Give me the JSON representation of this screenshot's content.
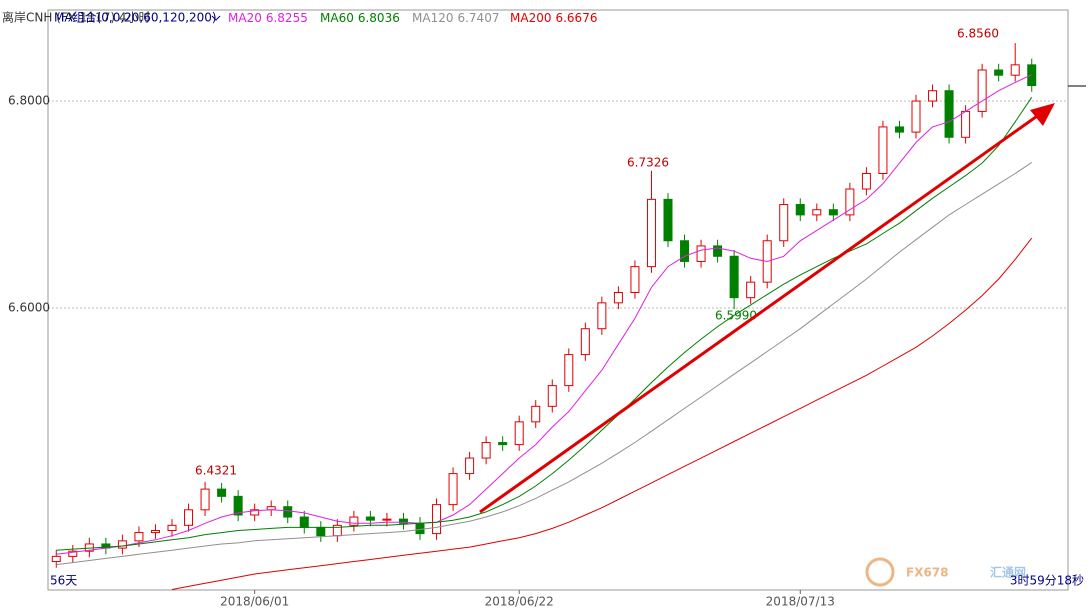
{
  "header": {
    "instrument": "离岸CNH (FX 1117)  4小时",
    "ma_group": "MA组合(0,0,20,60,120,200)"
  },
  "footer": {
    "left": "56天",
    "right": "3时59分18秒"
  },
  "watermark": {
    "brand": "FX678",
    "site": "汇通网"
  },
  "chart_data": {
    "type": "candlestick",
    "categories": [
      null,
      null,
      null,
      null,
      null,
      null,
      null,
      null,
      null,
      null,
      null,
      null,
      "2018/06/01",
      null,
      null,
      null,
      null,
      null,
      null,
      null,
      null,
      null,
      null,
      null,
      null,
      null,
      null,
      null,
      "2018/06/22",
      null,
      null,
      null,
      null,
      null,
      null,
      null,
      null,
      null,
      null,
      null,
      null,
      null,
      null,
      null,
      null,
      "2018/07/13",
      null,
      null,
      null,
      null,
      null,
      null,
      null,
      null,
      null,
      null,
      null,
      null,
      null,
      null
    ],
    "open": [
      6.355,
      6.36,
      6.365,
      6.372,
      6.368,
      6.375,
      6.383,
      6.385,
      6.39,
      6.405,
      6.425,
      6.418,
      6.4,
      6.405,
      6.408,
      6.398,
      6.388,
      6.38,
      6.39,
      6.398,
      6.395,
      6.396,
      6.392,
      6.382,
      6.41,
      6.44,
      6.455,
      6.47,
      6.468,
      6.49,
      6.505,
      6.525,
      6.555,
      6.58,
      6.605,
      6.615,
      6.64,
      6.705,
      6.665,
      6.645,
      6.66,
      6.65,
      6.61,
      6.625,
      6.665,
      6.7,
      6.69,
      6.695,
      6.69,
      6.715,
      6.73,
      6.775,
      6.77,
      6.8,
      6.81,
      6.765,
      6.79,
      6.83,
      6.825,
      6.835
    ],
    "high": [
      6.366,
      6.371,
      6.378,
      6.378,
      6.381,
      6.389,
      6.391,
      6.396,
      6.411,
      6.4321,
      6.431,
      6.424,
      6.411,
      6.414,
      6.414,
      6.404,
      6.394,
      6.396,
      6.404,
      6.404,
      6.402,
      6.402,
      6.398,
      6.416,
      6.446,
      6.461,
      6.476,
      6.476,
      6.496,
      6.511,
      6.531,
      6.561,
      6.586,
      6.611,
      6.621,
      6.646,
      6.7326,
      6.711,
      6.671,
      6.666,
      6.666,
      6.656,
      6.631,
      6.671,
      6.706,
      6.706,
      6.701,
      6.701,
      6.721,
      6.736,
      6.781,
      6.781,
      6.806,
      6.816,
      6.816,
      6.796,
      6.836,
      6.836,
      6.856,
      6.841
    ],
    "low": [
      6.349,
      6.354,
      6.359,
      6.362,
      6.362,
      6.369,
      6.377,
      6.379,
      6.384,
      6.399,
      6.412,
      6.394,
      6.394,
      6.399,
      6.392,
      6.382,
      6.374,
      6.374,
      6.384,
      6.389,
      6.389,
      6.386,
      6.376,
      6.376,
      6.404,
      6.434,
      6.449,
      6.462,
      6.462,
      6.484,
      6.499,
      6.519,
      6.549,
      6.574,
      6.599,
      6.609,
      6.634,
      6.659,
      6.639,
      6.639,
      6.644,
      6.599,
      6.604,
      6.619,
      6.659,
      6.684,
      6.684,
      6.684,
      6.684,
      6.709,
      6.724,
      6.764,
      6.764,
      6.794,
      6.759,
      6.759,
      6.784,
      6.819,
      6.819,
      6.809
    ],
    "close": [
      6.36,
      6.365,
      6.372,
      6.368,
      6.375,
      6.383,
      6.385,
      6.39,
      6.405,
      6.425,
      6.418,
      6.4,
      6.405,
      6.408,
      6.398,
      6.388,
      6.38,
      6.39,
      6.398,
      6.395,
      6.396,
      6.392,
      6.382,
      6.41,
      6.44,
      6.455,
      6.47,
      6.468,
      6.49,
      6.505,
      6.525,
      6.555,
      6.58,
      6.605,
      6.615,
      6.64,
      6.705,
      6.665,
      6.645,
      6.66,
      6.65,
      6.61,
      6.625,
      6.665,
      6.7,
      6.69,
      6.695,
      6.69,
      6.715,
      6.73,
      6.775,
      6.77,
      6.8,
      6.81,
      6.765,
      6.79,
      6.83,
      6.825,
      6.835,
      6.815
    ],
    "up_color": "#e00000",
    "down_color": "#008000",
    "series": [
      {
        "name": "MA20",
        "color": "#e020e0",
        "values": [
          6.362,
          6.364,
          6.366,
          6.368,
          6.37,
          6.373,
          6.376,
          6.38,
          6.385,
          6.392,
          6.398,
          6.402,
          6.404,
          6.405,
          6.404,
          6.402,
          6.398,
          6.394,
          6.392,
          6.392,
          6.393,
          6.393,
          6.392,
          6.393,
          6.4,
          6.41,
          6.425,
          6.44,
          6.455,
          6.468,
          6.485,
          6.5,
          6.52,
          6.54,
          6.565,
          6.59,
          6.62,
          6.64,
          6.65,
          6.656,
          6.658,
          6.655,
          6.648,
          6.645,
          6.65,
          6.665,
          6.675,
          6.685,
          6.695,
          6.705,
          6.72,
          6.74,
          6.76,
          6.775,
          6.78,
          6.79,
          6.8,
          6.81,
          6.818,
          6.8255
        ]
      },
      {
        "name": "MA60",
        "color": "#008000",
        "values": [
          6.366,
          6.367,
          6.368,
          6.369,
          6.37,
          6.372,
          6.374,
          6.376,
          6.378,
          6.381,
          6.383,
          6.385,
          6.386,
          6.387,
          6.388,
          6.388,
          6.388,
          6.388,
          6.389,
          6.39,
          6.39,
          6.391,
          6.392,
          6.393,
          6.395,
          6.398,
          6.403,
          6.41,
          6.418,
          6.428,
          6.44,
          6.453,
          6.467,
          6.482,
          6.497,
          6.512,
          6.528,
          6.543,
          6.557,
          6.57,
          6.582,
          6.593,
          6.603,
          6.613,
          6.623,
          6.632,
          6.64,
          6.648,
          6.655,
          6.662,
          6.672,
          6.682,
          6.694,
          6.706,
          6.717,
          6.728,
          6.74,
          6.757,
          6.78,
          6.8036
        ]
      },
      {
        "name": "MA120",
        "color": "#909090",
        "values": [
          6.352,
          6.354,
          6.356,
          6.358,
          6.36,
          6.362,
          6.364,
          6.366,
          6.368,
          6.37,
          6.372,
          6.373,
          6.375,
          6.376,
          6.377,
          6.378,
          6.379,
          6.38,
          6.381,
          6.382,
          6.383,
          6.384,
          6.386,
          6.388,
          6.391,
          6.394,
          6.398,
          6.403,
          6.409,
          6.416,
          6.424,
          6.432,
          6.441,
          6.45,
          6.46,
          6.47,
          6.481,
          6.492,
          6.503,
          6.514,
          6.525,
          6.536,
          6.547,
          6.558,
          6.569,
          6.58,
          6.592,
          6.604,
          6.616,
          6.628,
          6.641,
          6.654,
          6.666,
          6.678,
          6.69,
          6.7,
          6.71,
          6.72,
          6.73,
          6.7407
        ]
      },
      {
        "name": "MA200",
        "color": "#e00000",
        "values": [
          null,
          null,
          null,
          null,
          null,
          null,
          null,
          6.328,
          6.331,
          6.334,
          6.337,
          6.34,
          6.343,
          6.345,
          6.347,
          6.349,
          6.351,
          6.353,
          6.355,
          6.357,
          6.359,
          6.361,
          6.363,
          6.365,
          6.367,
          6.369,
          6.372,
          6.375,
          6.378,
          6.382,
          6.387,
          6.393,
          6.4,
          6.407,
          6.415,
          6.423,
          6.431,
          6.439,
          6.447,
          6.455,
          6.463,
          6.471,
          6.479,
          6.487,
          6.495,
          6.503,
          6.511,
          6.519,
          6.527,
          6.535,
          6.544,
          6.553,
          6.562,
          6.573,
          6.585,
          6.598,
          6.612,
          6.628,
          6.647,
          6.6676
        ]
      }
    ],
    "annotations": [
      "6.4321",
      "6.7326",
      "6.5990",
      "6.8560"
    ],
    "ylim": [
      6.3275,
      6.888
    ],
    "yticks": [
      {
        "value": 6.6,
        "label": "6.6000"
      },
      {
        "value": 6.8,
        "label": "6.8000"
      }
    ],
    "grid": true
  }
}
